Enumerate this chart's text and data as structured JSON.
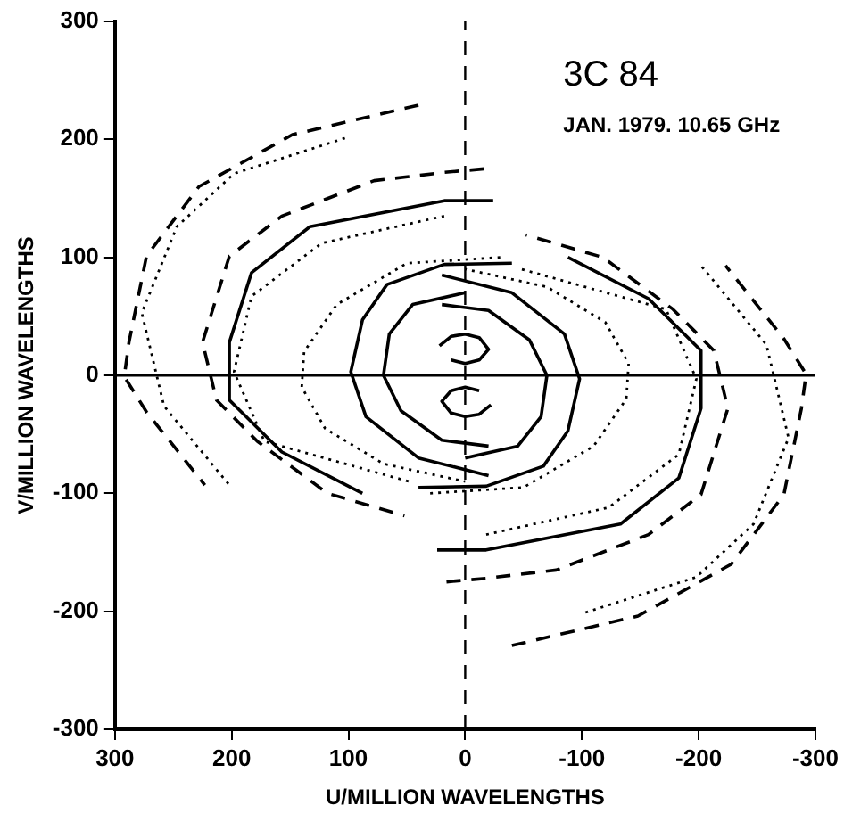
{
  "chart_data": {
    "type": "line",
    "title": "3C 84",
    "subtitle": "JAN. 1979. 10.65 GHz",
    "xlabel": "U/MILLION WAVELENGTHS",
    "ylabel": "V/MILLION WAVELENGTHS",
    "xlim": [
      300,
      -300
    ],
    "xticks": [
      300,
      200,
      100,
      0,
      -100,
      -200,
      -300
    ],
    "ylim": [
      -300,
      300
    ],
    "yticks": [
      -300,
      -200,
      -100,
      0,
      100,
      200,
      300
    ],
    "grid": false,
    "legend": false,
    "marker": "none",
    "ref_lines": [
      {
        "axis": "y",
        "value": 0,
        "line_style": "solid",
        "color": "#000000"
      },
      {
        "axis": "x",
        "value": 0,
        "line_style": "dashed",
        "color": "#000000"
      }
    ],
    "series": [
      {
        "color": "#000000",
        "line_style": "dashed",
        "x": [
          40,
          148,
          228,
          273,
          288,
          292,
          273,
          223,
          null,
          -40,
          -148,
          -228,
          -273,
          -288,
          -292,
          -273,
          -223
        ],
        "values": [
          229,
          204,
          160,
          101,
          28,
          -1,
          -31,
          -93,
          null,
          -229,
          -204,
          -160,
          -101,
          -28,
          1,
          31,
          93
        ]
      },
      {
        "color": "#000000",
        "line_style": "dotted",
        "x": [
          103,
          198,
          247,
          277,
          258,
          202,
          null,
          -103,
          -198,
          -247,
          -277,
          -258,
          -202
        ],
        "values": [
          201,
          171,
          126,
          53,
          -26,
          -93,
          null,
          -201,
          -171,
          -126,
          -53,
          26,
          93
        ]
      },
      {
        "color": "#000000",
        "line_style": "dashed",
        "x": [
          -16,
          18,
          78,
          157,
          202,
          225,
          213,
          178,
          118,
          52,
          null,
          16,
          -18,
          -78,
          -157,
          -202,
          -225,
          -213,
          -178,
          -118,
          -52
        ],
        "values": [
          175,
          172,
          165,
          135,
          101,
          28,
          -21,
          -56,
          -100,
          -119,
          null,
          -175,
          -172,
          -165,
          -135,
          -101,
          -28,
          21,
          56,
          100,
          119
        ]
      },
      {
        "color": "#000000",
        "line_style": "solid",
        "x": [
          -24,
          18,
          133,
          183,
          202,
          202,
          157,
          88,
          null,
          24,
          -18,
          -133,
          -183,
          -202,
          -202,
          -157,
          -88
        ],
        "values": [
          148,
          148,
          126,
          87,
          28,
          -21,
          -65,
          -100,
          null,
          -148,
          -148,
          -126,
          -87,
          -28,
          21,
          65,
          100
        ]
      },
      {
        "color": "#000000",
        "line_style": "dotted",
        "x": [
          18,
          123,
          183,
          198,
          172,
          48,
          null,
          -18,
          -123,
          -183,
          -198,
          -172,
          -48
        ],
        "values": [
          135,
          112,
          67,
          3,
          -56,
          -90,
          null,
          -135,
          -112,
          -67,
          -3,
          56,
          90
        ]
      },
      {
        "color": "#000000",
        "line_style": "dotted",
        "x": [
          -30,
          50,
          110,
          138,
          140,
          120,
          70,
          0,
          null,
          30,
          -50,
          -110,
          -138,
          -140,
          -120,
          -70,
          0
        ],
        "values": [
          100,
          95,
          60,
          20,
          -10,
          -45,
          -75,
          -90,
          null,
          -100,
          -95,
          -60,
          -20,
          10,
          45,
          75,
          90
        ]
      },
      {
        "color": "#000000",
        "line_style": "solid",
        "x": [
          -40,
          18,
          67,
          88,
          98,
          85,
          40,
          -20,
          null,
          40,
          -18,
          -67,
          -88,
          -98,
          -85,
          -40,
          20
        ],
        "values": [
          95,
          94,
          77,
          47,
          3,
          -35,
          -70,
          -85,
          null,
          -95,
          -94,
          -77,
          -47,
          -3,
          35,
          70,
          85
        ]
      },
      {
        "color": "#000000",
        "line_style": "solid",
        "x": [
          0,
          45,
          65,
          70,
          55,
          20,
          -20,
          null,
          0,
          -45,
          -65,
          -70,
          -55,
          -20,
          20
        ],
        "values": [
          70,
          60,
          35,
          0,
          -30,
          -55,
          -60,
          null,
          -70,
          -60,
          -35,
          0,
          30,
          55,
          60
        ]
      },
      {
        "color": "#000000",
        "line_style": "solid",
        "x": [
          22,
          12,
          0,
          -12,
          -20,
          -12,
          0,
          12,
          null,
          -22,
          -12,
          0,
          12,
          20,
          12,
          0,
          -12
        ],
        "values": [
          25,
          33,
          35,
          32,
          22,
          13,
          10,
          13,
          null,
          -25,
          -33,
          -35,
          -32,
          -22,
          -13,
          -10,
          -13
        ]
      }
    ]
  }
}
